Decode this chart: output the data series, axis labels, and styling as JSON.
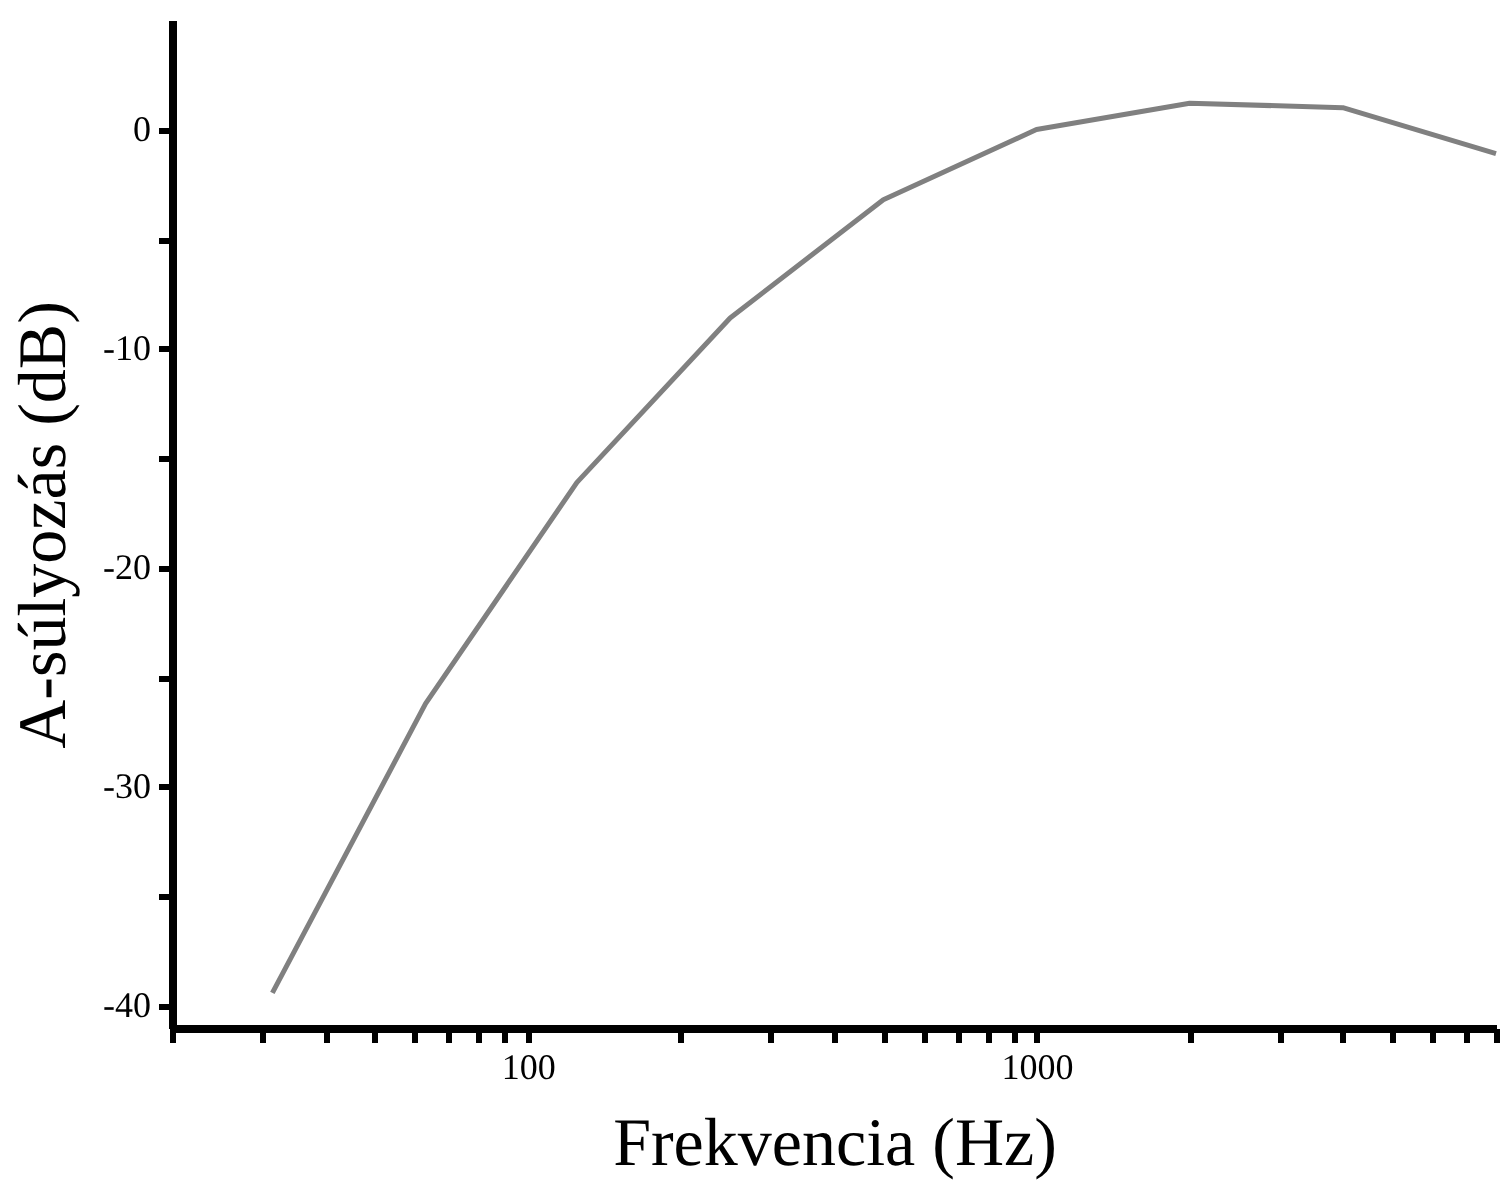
{
  "chart_data": {
    "type": "line",
    "xlabel": "Frekvencia (Hz)",
    "ylabel": "A-súlyozás (dB)",
    "x": [
      31.5,
      63,
      125,
      250,
      500,
      1000,
      2000,
      4000,
      8000
    ],
    "series": [
      {
        "color": "#808080",
        "values": [
          -39.4,
          -26.2,
          -16.1,
          -8.6,
          -3.2,
          0,
          1.2,
          1.0,
          -1.1
        ]
      }
    ],
    "log": "x",
    "xlim": [
      20,
      8000
    ],
    "xticks": [
      {
        "value": 20,
        "label": null
      },
      {
        "value": 30,
        "label": null
      },
      {
        "value": 40,
        "label": null
      },
      {
        "value": 50,
        "label": null
      },
      {
        "value": 60,
        "label": null
      },
      {
        "value": 70,
        "label": null
      },
      {
        "value": 80,
        "label": null
      },
      {
        "value": 90,
        "label": null
      },
      100,
      {
        "value": 200,
        "label": null
      },
      {
        "value": 300,
        "label": null
      },
      {
        "value": 400,
        "label": null
      },
      {
        "value": 500,
        "label": null
      },
      {
        "value": 600,
        "label": null
      },
      {
        "value": 700,
        "label": null
      },
      {
        "value": 800,
        "label": null
      },
      {
        "value": 900,
        "label": null
      },
      1000,
      {
        "value": 2000,
        "label": null
      },
      {
        "value": 3000,
        "label": null
      },
      {
        "value": 4000,
        "label": null
      },
      {
        "value": 5000,
        "label": null
      },
      {
        "value": 6000,
        "label": null
      },
      {
        "value": 7000,
        "label": null
      },
      {
        "value": 8000,
        "label": null
      }
    ],
    "ylim": [
      -41,
      5
    ],
    "yticks": [
      -40,
      {
        "value": -35,
        "label": null
      },
      -30,
      {
        "value": -25,
        "label": null
      },
      -20,
      {
        "value": -15,
        "label": null
      },
      -10,
      {
        "value": -5,
        "label": null
      },
      0
    ],
    "grid": false,
    "marker": "none",
    "line_style": "solid"
  }
}
